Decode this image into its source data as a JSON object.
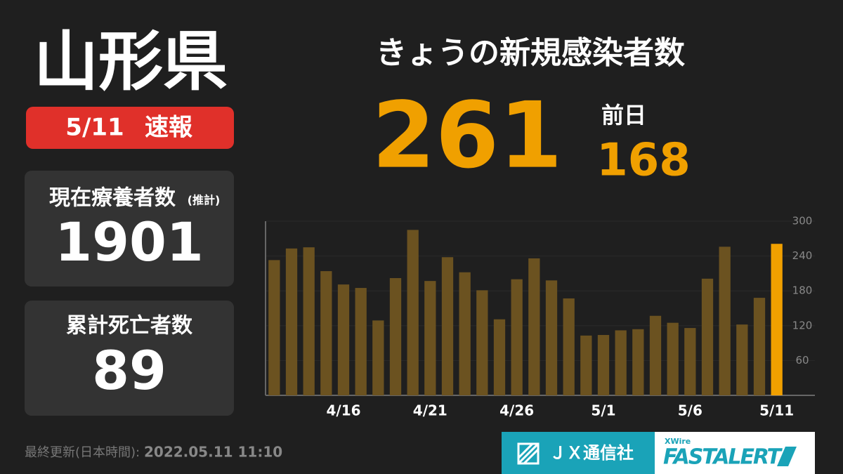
{
  "header": {
    "prefecture": "山形県",
    "date": "5/11",
    "badge": "速報"
  },
  "today": {
    "label": "きょうの新規感染者数",
    "value": 261,
    "previous_label": "前日",
    "previous_value": 168
  },
  "stats": [
    {
      "label": "現在療養者数",
      "note": "(推計)",
      "value": 1901
    },
    {
      "label": "累計死亡者数",
      "value": 89
    }
  ],
  "footer": {
    "updated_label": "最終更新(日本時間):",
    "updated": "2022.05.11 11:10",
    "brand": "ＪＸ通信社",
    "brand2_small": "XWire",
    "brand2": "FASTALERT"
  },
  "chart_data": {
    "type": "bar",
    "categories": [
      null,
      null,
      null,
      null,
      "4/16",
      null,
      null,
      null,
      null,
      "4/21",
      null,
      null,
      null,
      null,
      "4/26",
      null,
      null,
      null,
      null,
      "5/1",
      null,
      null,
      null,
      null,
      "5/6",
      null,
      null,
      null,
      null,
      "5/11"
    ],
    "values": [
      233,
      253,
      255,
      214,
      191,
      185,
      129,
      202,
      285,
      197,
      238,
      212,
      181,
      131,
      200,
      236,
      198,
      167,
      103,
      104,
      112,
      114,
      137,
      125,
      116,
      201,
      256,
      122,
      168,
      261
    ],
    "color": "#6b5220",
    "highlight_color": "#f0a000",
    "ylim": [
      0,
      300
    ],
    "yticks": [
      60,
      120,
      180,
      240,
      300
    ]
  }
}
